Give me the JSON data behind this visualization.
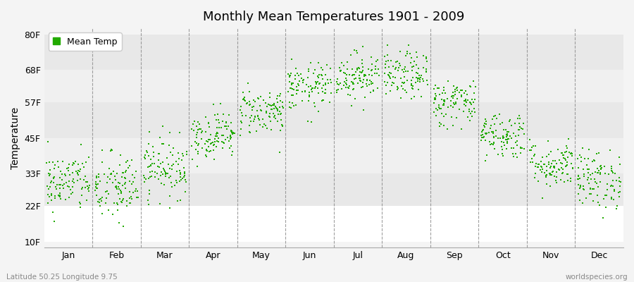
{
  "title": "Monthly Mean Temperatures 1901 - 2009",
  "ylabel": "Temperature",
  "footer_left": "Latitude 50.25 Longitude 9.75",
  "footer_right": "worldspecies.org",
  "legend_label": "Mean Temp",
  "ytick_values": [
    10,
    22,
    33,
    45,
    57,
    68,
    80
  ],
  "ytick_labels": [
    "10F",
    "22F",
    "33F",
    "45F",
    "57F",
    "68F",
    "80F"
  ],
  "ylim": [
    8,
    82
  ],
  "months": [
    "Jan",
    "Feb",
    "Mar",
    "Apr",
    "May",
    "Jun",
    "Jul",
    "Aug",
    "Sep",
    "Oct",
    "Nov",
    "Dec"
  ],
  "dot_color": "#22aa00",
  "dot_size": 3,
  "background_color": "#f4f4f4",
  "band_colors": [
    "#ffffff",
    "#e8e8e8",
    "#f4f4f4",
    "#e8e8e8",
    "#f4f4f4",
    "#e8e8e8"
  ],
  "mean_temps_f": [
    30,
    28,
    35,
    46,
    54,
    62,
    66,
    66,
    57,
    46,
    36,
    31
  ],
  "std_temps_f": [
    5,
    6,
    5,
    4,
    4,
    4,
    4,
    4,
    4,
    4,
    4,
    5
  ],
  "n_years": 109,
  "seed": 42
}
